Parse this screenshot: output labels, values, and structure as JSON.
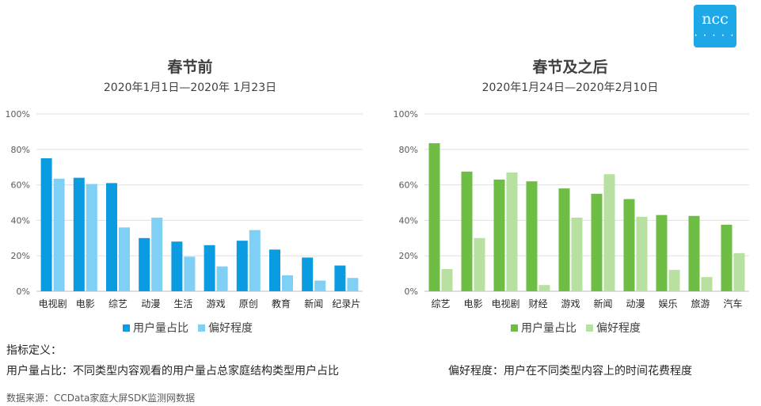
{
  "logo": {
    "text": "ncc",
    "dots": "• • • • •"
  },
  "chart_data": [
    {
      "type": "bar",
      "title": "春节前",
      "subtitle": "2020年1月1日—2020年 1月23日",
      "categories": [
        "电视剧",
        "电影",
        "综艺",
        "动漫",
        "生活",
        "游戏",
        "原创",
        "教育",
        "新闻",
        "纪录片"
      ],
      "series": [
        {
          "name": "用户量占比",
          "color": "#0a9be0",
          "values": [
            75,
            64,
            61,
            30,
            28,
            26,
            28.5,
            23.5,
            19,
            14.5
          ]
        },
        {
          "name": "偏好程度",
          "color": "#80d0f6",
          "values": [
            63.5,
            60.5,
            36,
            41.5,
            19.5,
            14,
            34.5,
            9,
            6,
            7.5
          ]
        }
      ],
      "ylim": [
        0,
        100
      ],
      "yticks": [
        "0%",
        "20%",
        "40%",
        "60%",
        "80%",
        "100%"
      ],
      "grid": true,
      "legend": "bottom"
    },
    {
      "type": "bar",
      "title": "春节及之后",
      "subtitle": "2020年1月24日—2020年2月10日",
      "categories": [
        "综艺",
        "电影",
        "电视剧",
        "财经",
        "游戏",
        "新闻",
        "动漫",
        "娱乐",
        "旅游",
        "汽车"
      ],
      "series": [
        {
          "name": "用户量占比",
          "color": "#6ebe45",
          "values": [
            83.5,
            67.5,
            63,
            62,
            58,
            55,
            52,
            43,
            42.5,
            37.5
          ]
        },
        {
          "name": "偏好程度",
          "color": "#b8e0a0",
          "values": [
            12.5,
            30,
            67,
            3.5,
            41.5,
            66,
            42,
            12,
            8,
            21.5
          ]
        }
      ],
      "ylim": [
        0,
        100
      ],
      "yticks": [
        "0%",
        "20%",
        "40%",
        "60%",
        "80%",
        "100%"
      ],
      "grid": true,
      "legend": "bottom"
    }
  ],
  "notes": {
    "definition_title": "指标定义：",
    "user_share_def": "用户量占比：不同类型内容观看的用户量占总家庭结构类型用户占比",
    "preference_def": "偏好程度：用户在不同类型内容上的时间花费程度",
    "source": "数据来源：CCData家庭大屏SDK监测网数据"
  }
}
